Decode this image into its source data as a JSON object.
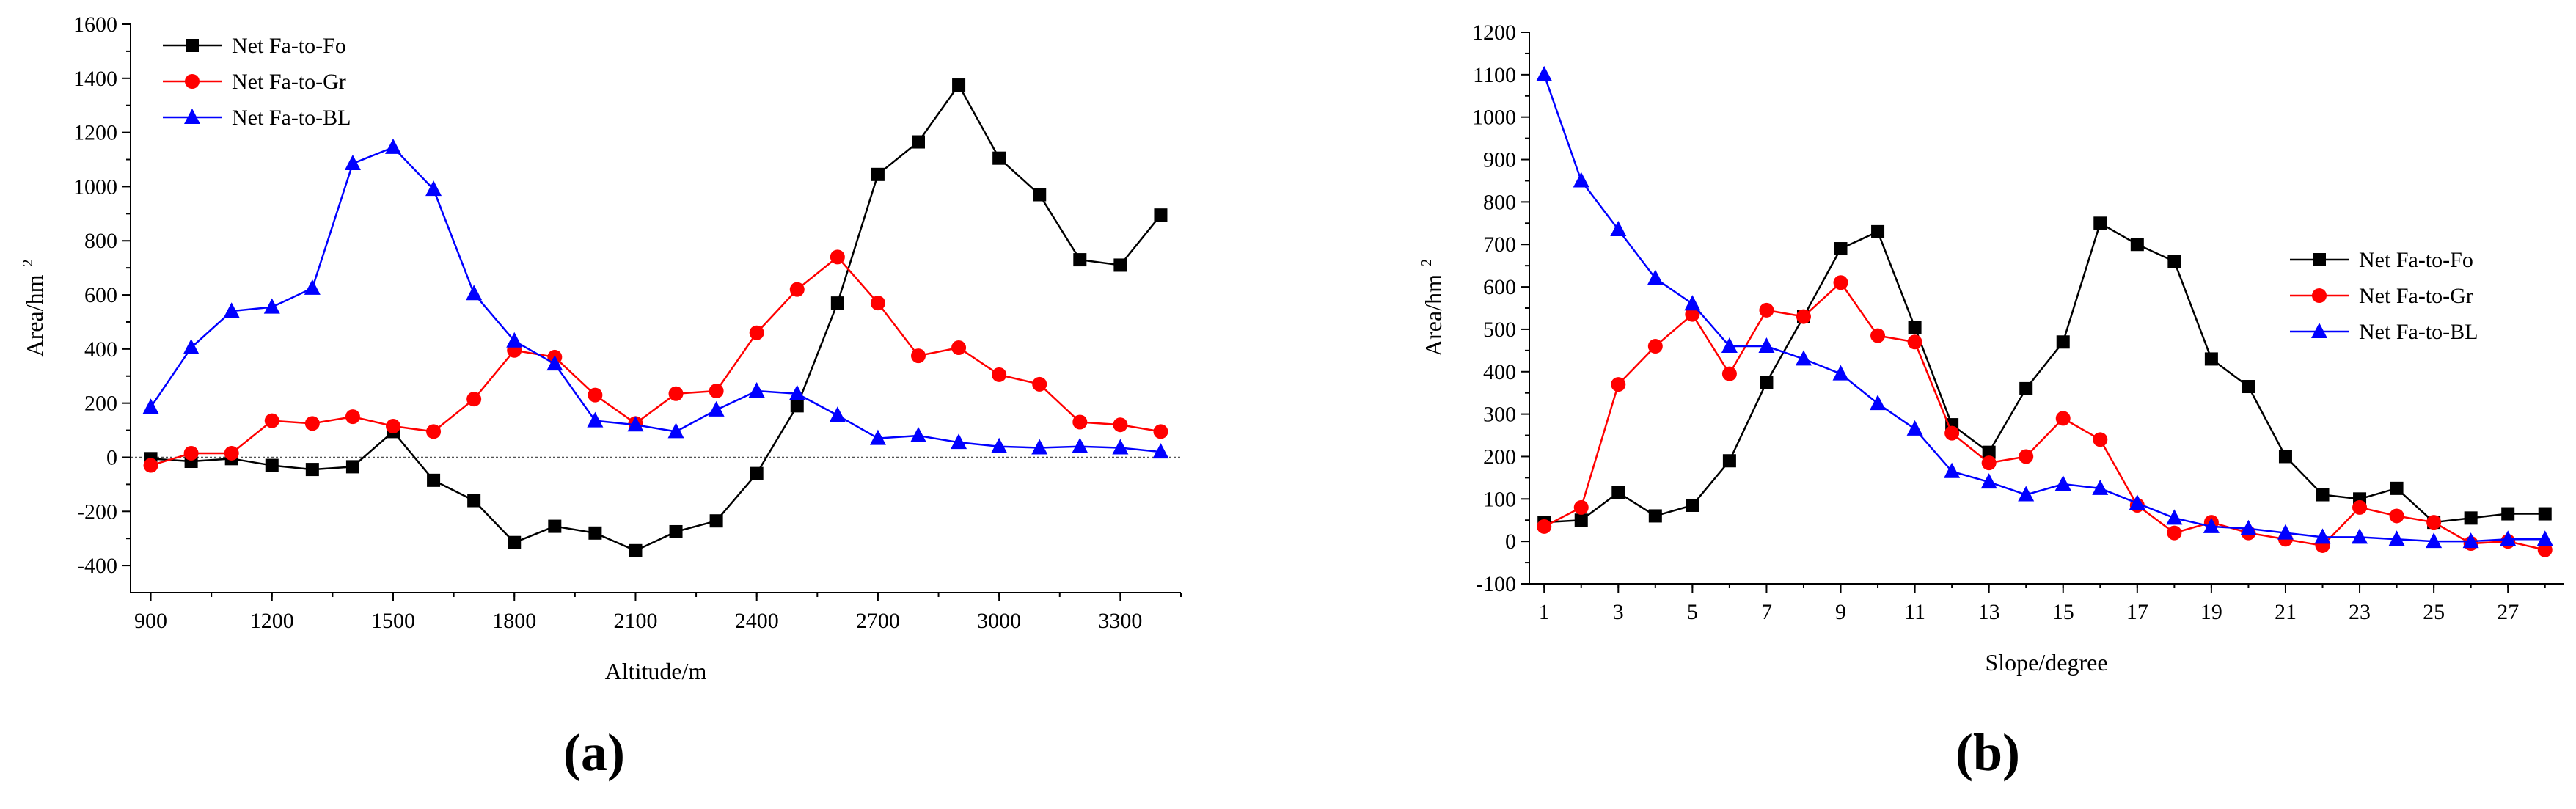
{
  "chart_data": [
    {
      "type": "line",
      "panel_label": "(a)",
      "xlabel": "Altitude/m",
      "ylabel": "Area/hm",
      "ylabel_sup": "2",
      "xlim": [
        850,
        3450
      ],
      "ylim": [
        -500,
        1600
      ],
      "xticks": [
        900,
        1200,
        1500,
        1800,
        2100,
        2400,
        2700,
        3000,
        3300
      ],
      "xtick_labels": [
        "900",
        "1200",
        "1500",
        "1800",
        "2100",
        "2400",
        "2700",
        "3000",
        "3300"
      ],
      "yticks": [
        -400,
        -200,
        0,
        200,
        400,
        600,
        800,
        1000,
        1200,
        1400,
        1600
      ],
      "ytick_labels": [
        "-400",
        "-200",
        "0",
        "200",
        "400",
        "600",
        "800",
        "1000",
        "1200",
        "1400",
        "1600"
      ],
      "zero_line": true,
      "legend_position": "top-left",
      "x": [
        900,
        1000,
        1100,
        1200,
        1300,
        1400,
        1500,
        1600,
        1700,
        1800,
        1900,
        2000,
        2100,
        2200,
        2300,
        2400,
        2500,
        2600,
        2700,
        2800,
        2900,
        3000,
        3100,
        3200,
        3300,
        3400
      ],
      "series": [
        {
          "name": "Net Fa-to-Fo",
          "color": "#000000",
          "marker": "square",
          "values": [
            -5,
            -15,
            -5,
            -30,
            -45,
            -35,
            95,
            -85,
            -160,
            -315,
            -255,
            -280,
            -345,
            -275,
            -235,
            -60,
            190,
            570,
            1045,
            1165,
            1375,
            1105,
            970,
            730,
            710,
            895
          ]
        },
        {
          "name": "Net Fa-to-Gr",
          "color": "#ff0000",
          "marker": "circle",
          "values": [
            -30,
            15,
            15,
            135,
            125,
            150,
            115,
            95,
            215,
            395,
            370,
            230,
            125,
            235,
            245,
            460,
            620,
            740,
            570,
            375,
            405,
            305,
            270,
            130,
            120,
            95
          ]
        },
        {
          "name": "Net Fa-to-BL",
          "color": "#0000ff",
          "marker": "triangle",
          "values": [
            185,
            405,
            540,
            555,
            625,
            1085,
            1145,
            990,
            605,
            430,
            345,
            135,
            120,
            95,
            175,
            245,
            235,
            155,
            70,
            80,
            55,
            40,
            35,
            40,
            35,
            20
          ]
        }
      ]
    },
    {
      "type": "line",
      "panel_label": "(b)",
      "xlabel": "Slope/degree",
      "ylabel": "Area/hm",
      "ylabel_sup": "2",
      "xlim": [
        0.6,
        28.5
      ],
      "ylim": [
        -100,
        1200
      ],
      "xticks": [
        1,
        3,
        5,
        7,
        9,
        11,
        13,
        15,
        17,
        19,
        21,
        23,
        25,
        27
      ],
      "xtick_labels": [
        "1",
        "3",
        "5",
        "7",
        "9",
        "11",
        "13",
        "15",
        "17",
        "19",
        "21",
        "23",
        "25",
        "27"
      ],
      "yticks": [
        -100,
        0,
        100,
        200,
        300,
        400,
        500,
        600,
        700,
        800,
        900,
        1000,
        1100,
        1200
      ],
      "ytick_labels": [
        "-100",
        "0",
        "100",
        "200",
        "300",
        "400",
        "500",
        "600",
        "700",
        "800",
        "900",
        "1000",
        "1100",
        "1200"
      ],
      "zero_line": false,
      "legend_position": "middle-right",
      "x": [
        1,
        2,
        3,
        4,
        5,
        6,
        7,
        8,
        9,
        10,
        11,
        12,
        13,
        14,
        15,
        16,
        17,
        18,
        19,
        20,
        21,
        22,
        23,
        24,
        25,
        26,
        27,
        28
      ],
      "series": [
        {
          "name": "Net Fa-to-Fo",
          "color": "#000000",
          "marker": "square",
          "values": [
            45,
            50,
            115,
            60,
            85,
            190,
            375,
            530,
            690,
            730,
            505,
            275,
            210,
            360,
            470,
            750,
            700,
            660,
            430,
            365,
            200,
            110,
            100,
            125,
            45,
            55,
            65,
            65
          ]
        },
        {
          "name": "Net Fa-to-Gr",
          "color": "#ff0000",
          "marker": "circle",
          "values": [
            35,
            80,
            370,
            460,
            535,
            395,
            545,
            530,
            610,
            485,
            470,
            255,
            185,
            200,
            290,
            240,
            85,
            20,
            45,
            20,
            5,
            -10,
            80,
            60,
            45,
            -5,
            0,
            -20
          ]
        },
        {
          "name": "Net Fa-to-BL",
          "color": "#0000ff",
          "marker": "triangle",
          "values": [
            1100,
            850,
            735,
            620,
            560,
            460,
            460,
            430,
            395,
            325,
            265,
            165,
            140,
            110,
            135,
            125,
            90,
            55,
            35,
            30,
            20,
            10,
            10,
            5,
            0,
            0,
            5,
            5
          ]
        }
      ]
    }
  ]
}
